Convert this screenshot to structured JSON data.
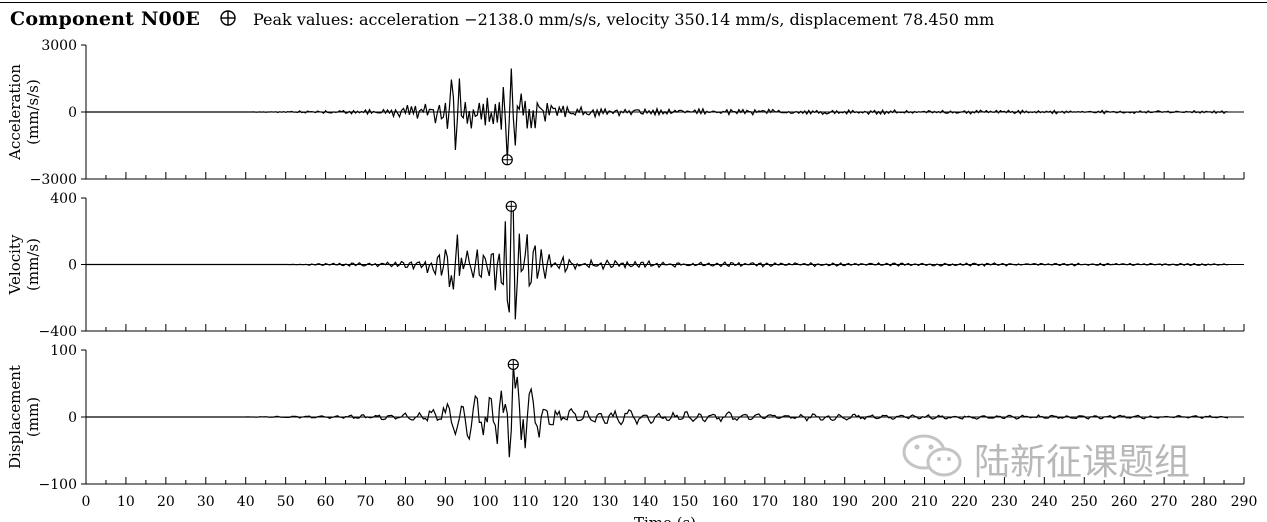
{
  "title": {
    "main": "Component N00E",
    "marker_icon": "circled-plus-icon",
    "peaks": "Peak values: acceleration −2138.0 mm/s/s, velocity 350.14 mm/s, displacement 78.450 mm"
  },
  "watermark": {
    "icon": "wechat-icon",
    "text": "陆新征课题组"
  },
  "chart_data": [
    {
      "type": "line",
      "ylabel_line1": "Acceleration",
      "ylabel_line2": "(mm/s/s)",
      "ylim": [
        -3000,
        3000
      ],
      "yticks": [
        -3000,
        0,
        3000
      ],
      "ytick_labels": [
        "−3000",
        "0",
        "3000"
      ],
      "x_start": 0,
      "x_end": 286,
      "dt": 0.5,
      "peak": {
        "x": 105.5,
        "y": -2138.0
      },
      "series": [
        {
          "envelope": [
            [
              0,
              0
            ],
            [
              40,
              0
            ],
            [
              45,
              20
            ],
            [
              50,
              30
            ],
            [
              55,
              60
            ],
            [
              60,
              80
            ],
            [
              65,
              90
            ],
            [
              70,
              150
            ],
            [
              75,
              230
            ],
            [
              80,
              300
            ],
            [
              84,
              420
            ],
            [
              88,
              650
            ],
            [
              91,
              1100
            ],
            [
              93,
              1600
            ],
            [
              95,
              1000
            ],
            [
              98,
              600
            ],
            [
              101,
              700
            ],
            [
              103,
              1100
            ],
            [
              105,
              2138
            ],
            [
              107,
              1900
            ],
            [
              109,
              1300
            ],
            [
              112,
              900
            ],
            [
              115,
              650
            ],
            [
              118,
              450
            ],
            [
              121,
              350
            ],
            [
              125,
              260
            ],
            [
              130,
              200
            ],
            [
              140,
              170
            ],
            [
              150,
              150
            ],
            [
              160,
              140
            ],
            [
              170,
              130
            ],
            [
              180,
              120
            ],
            [
              190,
              110
            ],
            [
              200,
              100
            ],
            [
              220,
              90
            ],
            [
              240,
              80
            ],
            [
              260,
              70
            ],
            [
              286,
              60
            ]
          ],
          "spikes": [
            [
              91.5,
              1450
            ],
            [
              92.5,
              -1700
            ],
            [
              93.5,
              1500
            ],
            [
              105.5,
              -2138
            ],
            [
              106.5,
              1950
            ],
            [
              107.5,
              -1500
            ]
          ]
        }
      ]
    },
    {
      "type": "line",
      "ylabel_line1": "Velocity",
      "ylabel_line2": "(mm/s)",
      "ylim": [
        -400,
        400
      ],
      "yticks": [
        -400,
        0,
        400
      ],
      "ytick_labels": [
        "−400",
        "0",
        "400"
      ],
      "x_start": 0,
      "x_end": 286,
      "dt": 0.5,
      "peak": {
        "x": 106.5,
        "y": 350.14
      },
      "series": [
        {
          "envelope": [
            [
              0,
              0
            ],
            [
              50,
              0
            ],
            [
              55,
              4
            ],
            [
              60,
              8
            ],
            [
              65,
              10
            ],
            [
              70,
              14
            ],
            [
              75,
              18
            ],
            [
              80,
              25
            ],
            [
              85,
              45
            ],
            [
              88,
              90
            ],
            [
              91,
              150
            ],
            [
              93,
              170
            ],
            [
              96,
              110
            ],
            [
              99,
              120
            ],
            [
              102,
              150
            ],
            [
              104,
              200
            ],
            [
              106,
              350
            ],
            [
              107,
              330
            ],
            [
              109,
              260
            ],
            [
              111,
              180
            ],
            [
              113,
              150
            ],
            [
              115,
              120
            ],
            [
              118,
              75
            ],
            [
              121,
              45
            ],
            [
              125,
              30
            ],
            [
              130,
              28
            ],
            [
              140,
              22
            ],
            [
              150,
              18
            ],
            [
              160,
              16
            ],
            [
              170,
              14
            ],
            [
              180,
              12
            ],
            [
              200,
              11
            ],
            [
              220,
              10
            ],
            [
              240,
              8
            ],
            [
              260,
              7
            ],
            [
              286,
              6
            ]
          ],
          "spikes": [
            [
              92,
              -150
            ],
            [
              93,
              180
            ],
            [
              106.5,
              350.14
            ],
            [
              107.5,
              -330
            ],
            [
              105,
              260
            ]
          ]
        }
      ]
    },
    {
      "type": "line",
      "ylabel_line1": "Displacement",
      "ylabel_line2": "(mm)",
      "ylim": [
        -100,
        100
      ],
      "yticks": [
        -100,
        0,
        100
      ],
      "ytick_labels": [
        "−100",
        "0",
        "100"
      ],
      "x_start": 0,
      "x_end": 286,
      "dt": 0.5,
      "peak": {
        "x": 107,
        "y": 78.45
      },
      "series": [
        {
          "envelope": [
            [
              0,
              0
            ],
            [
              40,
              0
            ],
            [
              45,
              1
            ],
            [
              50,
              1
            ],
            [
              55,
              2
            ],
            [
              60,
              2
            ],
            [
              65,
              3
            ],
            [
              70,
              4
            ],
            [
              75,
              5
            ],
            [
              80,
              6
            ],
            [
              85,
              9
            ],
            [
              88,
              18
            ],
            [
              91,
              30
            ],
            [
              93,
              45
            ],
            [
              96,
              35
            ],
            [
              99,
              30
            ],
            [
              102,
              35
            ],
            [
              104,
              50
            ],
            [
              106,
              70
            ],
            [
              107,
              78
            ],
            [
              109,
              60
            ],
            [
              111,
              45
            ],
            [
              113,
              40
            ],
            [
              116,
              25
            ],
            [
              120,
              15
            ],
            [
              125,
              14
            ],
            [
              130,
              12
            ],
            [
              140,
              11
            ],
            [
              150,
              9
            ],
            [
              160,
              8
            ],
            [
              170,
              7
            ],
            [
              180,
              6
            ],
            [
              190,
              5
            ],
            [
              200,
              4
            ],
            [
              220,
              4
            ],
            [
              240,
              3
            ],
            [
              260,
              3
            ],
            [
              286,
              2
            ]
          ],
          "spikes": [
            [
              107,
              78.45
            ],
            [
              107.8,
              -78
            ],
            [
              106,
              -60
            ]
          ]
        }
      ]
    }
  ],
  "x_axis": {
    "xlabel": "Time (s)",
    "xlim": [
      0,
      290
    ],
    "ticks": [
      0,
      10,
      20,
      30,
      40,
      50,
      60,
      70,
      80,
      90,
      100,
      110,
      120,
      130,
      140,
      150,
      160,
      170,
      180,
      190,
      200,
      210,
      220,
      230,
      240,
      250,
      260,
      270,
      280,
      290
    ],
    "tick_labels": [
      "0",
      "10",
      "20",
      "30",
      "40",
      "50",
      "60",
      "70",
      "80",
      "90",
      "100",
      "110",
      "120",
      "130",
      "140",
      "150",
      "160",
      "170",
      "180",
      "190",
      "200",
      "210",
      "220",
      "230",
      "240",
      "250",
      "260",
      "270",
      "280",
      "290"
    ],
    "minor_step": 5
  }
}
